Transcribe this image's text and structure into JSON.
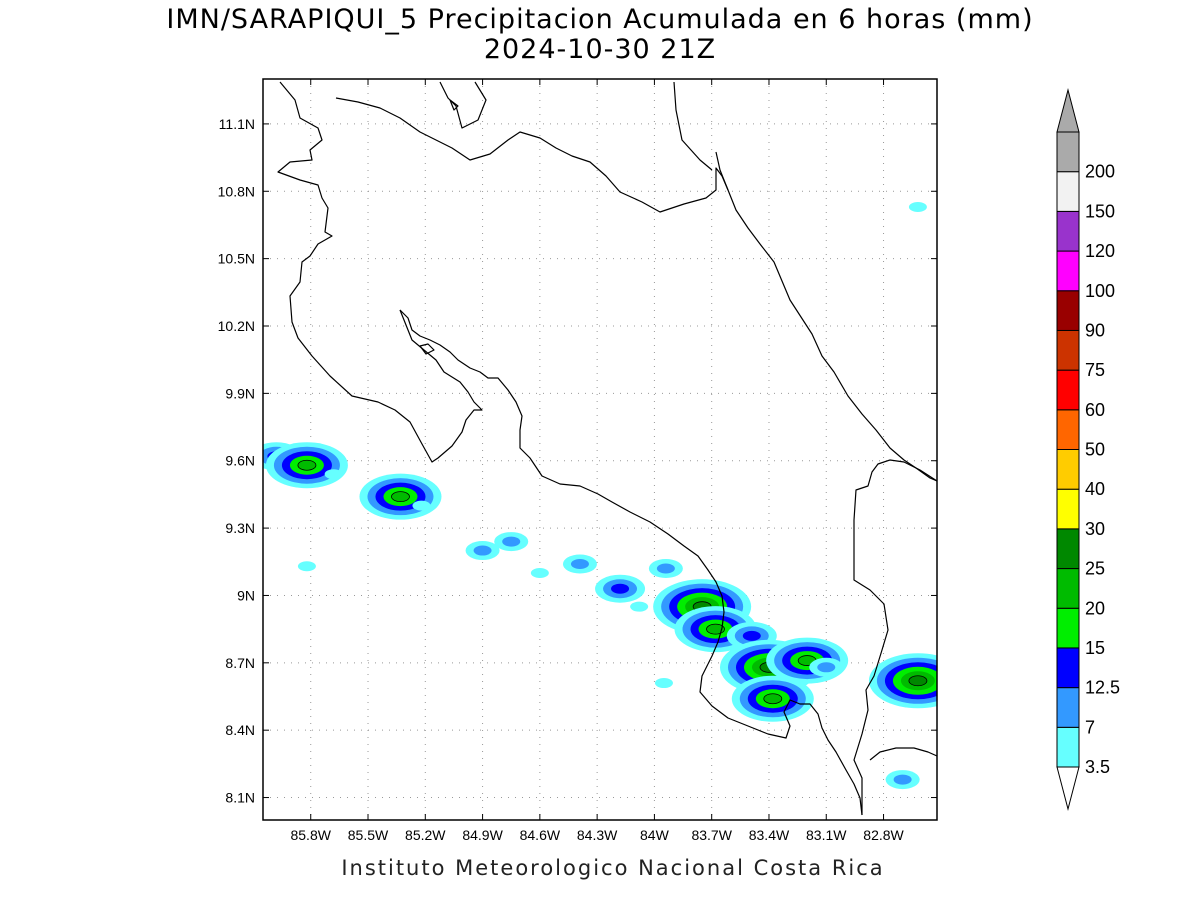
{
  "title": "IMN/SARAPIQUI_5 Precipitacion Acumulada en 6 horas (mm)",
  "subtitle": "2024-10-30 21Z",
  "footer": "Instituto Meteorologico Nacional Costa Rica",
  "map": {
    "lon_range": [
      -86.05,
      -82.52
    ],
    "lat_range": [
      8.0,
      11.3
    ],
    "lat_ticks": [
      {
        "value": 11.1,
        "label": "11.1N"
      },
      {
        "value": 10.8,
        "label": "10.8N"
      },
      {
        "value": 10.5,
        "label": "10.5N"
      },
      {
        "value": 10.2,
        "label": "10.2N"
      },
      {
        "value": 9.9,
        "label": "9.9N"
      },
      {
        "value": 9.6,
        "label": "9.6N"
      },
      {
        "value": 9.3,
        "label": "9.3N"
      },
      {
        "value": 9.0,
        "label": "9N"
      },
      {
        "value": 8.7,
        "label": "8.7N"
      },
      {
        "value": 8.4,
        "label": "8.4N"
      },
      {
        "value": 8.1,
        "label": "8.1N"
      }
    ],
    "lon_ticks": [
      {
        "value": -85.8,
        "label": "85.8W"
      },
      {
        "value": -85.5,
        "label": "85.5W"
      },
      {
        "value": -85.2,
        "label": "85.2W"
      },
      {
        "value": -84.9,
        "label": "84.9W"
      },
      {
        "value": -84.6,
        "label": "84.6W"
      },
      {
        "value": -84.3,
        "label": "84.3W"
      },
      {
        "value": -84.0,
        "label": "84W"
      },
      {
        "value": -83.7,
        "label": "83.7W"
      },
      {
        "value": -83.4,
        "label": "83.4W"
      },
      {
        "value": -83.1,
        "label": "83.1W"
      },
      {
        "value": -82.8,
        "label": "82.8W"
      }
    ],
    "grid": true,
    "colorbar": {
      "levels": [
        "3.5",
        "7",
        "12.5",
        "15",
        "20",
        "25",
        "30",
        "40",
        "50",
        "60",
        "75",
        "90",
        "100",
        "120",
        "150",
        "200"
      ],
      "colors": [
        "#66ffff",
        "#3399ff",
        "#0000ff",
        "#00ee00",
        "#00bb00",
        "#008800",
        "#ffff00",
        "#ffcc00",
        "#ff6600",
        "#ff0000",
        "#cc3300",
        "#990000",
        "#ff00ff",
        "#9933cc",
        "#f2f2f2",
        "#aaaaaa"
      ],
      "below_color": "#ffffff",
      "above_color": "#aaaaaa"
    },
    "precip_cells": [
      {
        "lon": -85.98,
        "lat": 9.62,
        "mm": 12.5
      },
      {
        "lon": -85.82,
        "lat": 9.58,
        "mm": 20
      },
      {
        "lon": -85.68,
        "lat": 9.54,
        "mm": 3.5
      },
      {
        "lon": -85.33,
        "lat": 9.44,
        "mm": 20
      },
      {
        "lon": -85.22,
        "lat": 9.4,
        "mm": 3.5
      },
      {
        "lon": -84.9,
        "lat": 9.2,
        "mm": 7
      },
      {
        "lon": -84.75,
        "lat": 9.24,
        "mm": 7
      },
      {
        "lon": -84.6,
        "lat": 9.1,
        "mm": 3.5
      },
      {
        "lon": -84.39,
        "lat": 9.14,
        "mm": 7
      },
      {
        "lon": -84.18,
        "lat": 9.03,
        "mm": 12.5
      },
      {
        "lon": -84.08,
        "lat": 8.95,
        "mm": 3.5
      },
      {
        "lon": -83.94,
        "lat": 9.12,
        "mm": 7
      },
      {
        "lon": -83.75,
        "lat": 8.95,
        "mm": 25
      },
      {
        "lon": -83.68,
        "lat": 8.85,
        "mm": 20
      },
      {
        "lon": -83.49,
        "lat": 8.82,
        "mm": 12.5
      },
      {
        "lon": -83.4,
        "lat": 8.68,
        "mm": 25
      },
      {
        "lon": -83.2,
        "lat": 8.71,
        "mm": 20
      },
      {
        "lon": -83.38,
        "lat": 8.54,
        "mm": 20
      },
      {
        "lon": -83.1,
        "lat": 8.68,
        "mm": 7
      },
      {
        "lon": -82.62,
        "lat": 8.62,
        "mm": 25
      },
      {
        "lon": -82.62,
        "lat": 10.73,
        "mm": 3.5
      },
      {
        "lon": -82.7,
        "lat": 8.18,
        "mm": 7
      },
      {
        "lon": -83.95,
        "lat": 8.61,
        "mm": 3.5
      },
      {
        "lon": -85.82,
        "lat": 9.13,
        "mm": 3.5
      }
    ]
  }
}
